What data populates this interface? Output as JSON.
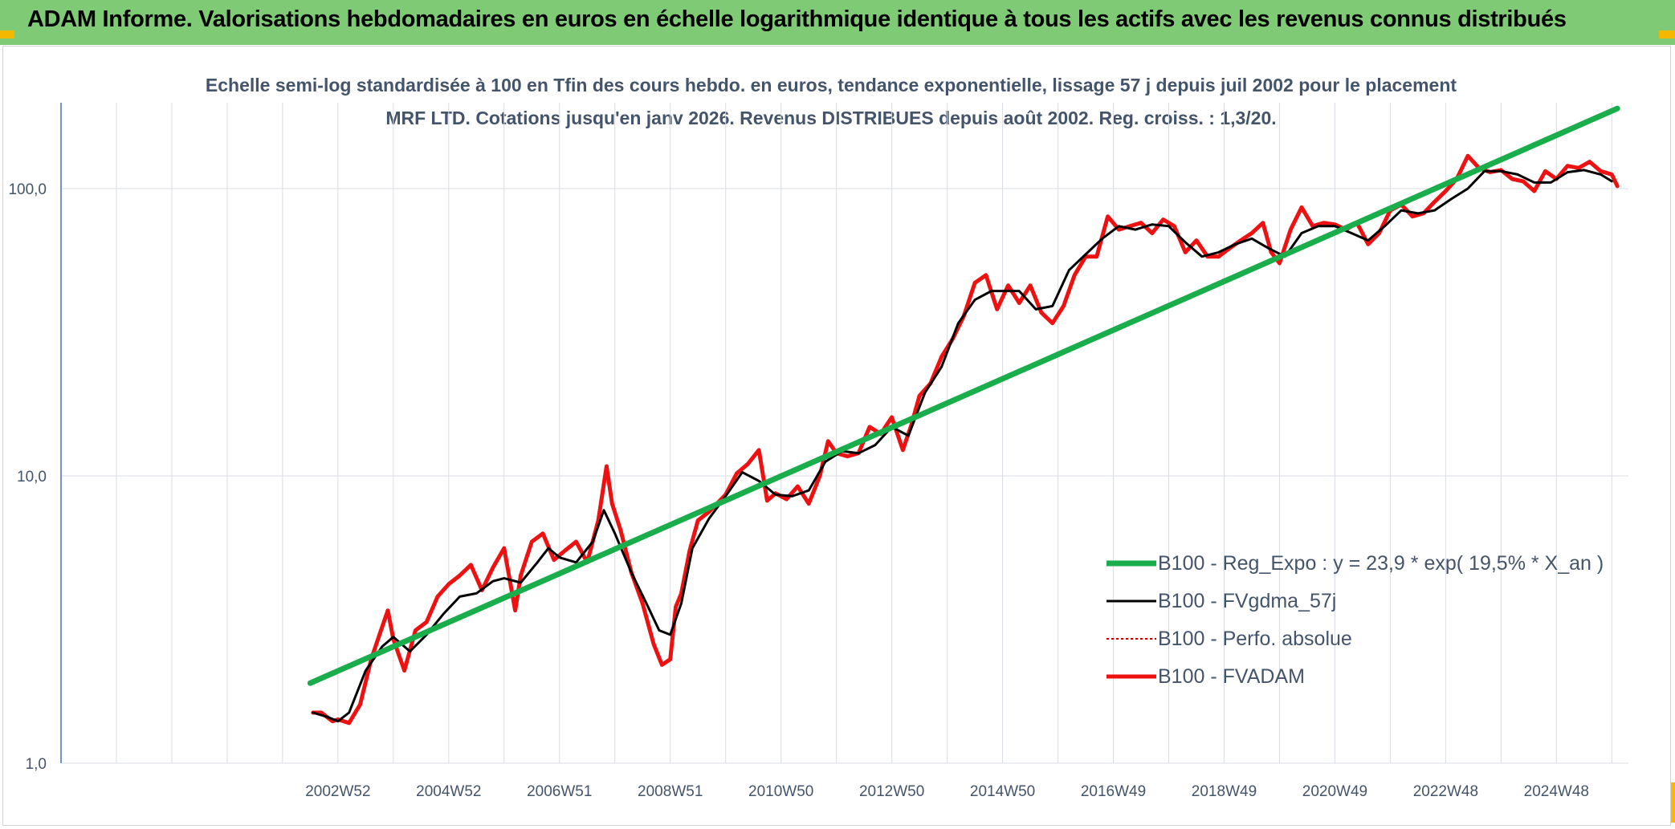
{
  "header": {
    "title": "ADAM Informe. Valorisations hebdomadaires en euros en échelle logarithmique identique à tous les actifs avec les revenus connus distribués"
  },
  "colors": {
    "banner": "#7fca75",
    "corner": "#f5b800",
    "regression": "#1aad4b",
    "smoothed": "#000000",
    "perfo": "#c00000",
    "fvadam": "#ee1111",
    "grid": "#d9dde3",
    "axis": "#4a72b0",
    "text": "#44546a"
  },
  "chart_data": {
    "type": "line",
    "title": "Echelle semi-log standardisée à 100 en Tfin des cours hebdo. en euros, tendance exponentielle, lissage 57 j depuis juil 2002 pour le placement MRF LTD. Cotations jusqu'en janv 2026. Revenus DISTRIBUES depuis août 2002. Reg. croiss. : 1,3/20.",
    "y_scale": "log",
    "ylim": [
      1,
      200
    ],
    "y_ticks": [
      1,
      10,
      100
    ],
    "y_tick_labels": [
      "1,0",
      "10,0",
      "100,0"
    ],
    "x_ticks": [
      "2002W52",
      "2004W52",
      "2006W51",
      "2008W51",
      "2010W50",
      "2012W50",
      "2014W50",
      "2016W49",
      "2018W49",
      "2020W49",
      "2022W48",
      "2024W48"
    ],
    "x_tick_years": [
      2003.0,
      2005.0,
      2007.0,
      2009.0,
      2011.0,
      2013.0,
      2015.0,
      2017.0,
      2019.0,
      2021.0,
      2023.0,
      2025.0
    ],
    "xlim": [
      1998.0,
      2026.3
    ],
    "x_gridlines": [
      1998,
      1999,
      2000,
      2001,
      2002,
      2003,
      2004,
      2005,
      2006,
      2007,
      2008,
      2009,
      2010,
      2011,
      2012,
      2013,
      2014,
      2015,
      2016,
      2017,
      2018,
      2019,
      2020,
      2021,
      2022,
      2023,
      2024,
      2025,
      2026
    ],
    "grid": true,
    "legend_position": "bottom-right",
    "series": [
      {
        "name": "B100 - Reg_Expo : y = 23,9 * exp( 19,5% *  X_an )",
        "style": "regression",
        "x": [
          2002.5,
          2026.1
        ],
        "values": [
          1.9,
          190
        ]
      },
      {
        "name": "B100 - FVgdma_57j",
        "style": "smoothed",
        "x": [
          2002.55,
          2002.8,
          2003.0,
          2003.2,
          2003.5,
          2003.8,
          2004.0,
          2004.3,
          2004.6,
          2004.9,
          2005.2,
          2005.5,
          2005.8,
          2006.0,
          2006.3,
          2006.6,
          2006.8,
          2007.0,
          2007.3,
          2007.6,
          2007.8,
          2008.0,
          2008.3,
          2008.6,
          2008.8,
          2009.0,
          2009.2,
          2009.4,
          2009.7,
          2010.0,
          2010.3,
          2010.6,
          2010.9,
          2011.2,
          2011.5,
          2011.8,
          2012.1,
          2012.4,
          2012.7,
          2013.0,
          2013.3,
          2013.6,
          2013.9,
          2014.2,
          2014.5,
          2014.8,
          2015.0,
          2015.3,
          2015.6,
          2015.9,
          2016.2,
          2016.5,
          2016.8,
          2017.1,
          2017.4,
          2017.7,
          2018.0,
          2018.3,
          2018.6,
          2018.9,
          2019.2,
          2019.5,
          2019.8,
          2020.1,
          2020.4,
          2020.7,
          2021.0,
          2021.3,
          2021.6,
          2021.9,
          2022.2,
          2022.5,
          2022.8,
          2023.1,
          2023.4,
          2023.7,
          2024.0,
          2024.3,
          2024.6,
          2024.9,
          2025.2,
          2025.5,
          2025.8,
          2026.0
        ],
        "values": [
          1.5,
          1.45,
          1.4,
          1.5,
          2.1,
          2.55,
          2.75,
          2.45,
          2.8,
          3.3,
          3.8,
          3.9,
          4.3,
          4.4,
          4.25,
          5.0,
          5.6,
          5.2,
          5.0,
          5.9,
          7.6,
          6.3,
          4.6,
          3.5,
          2.9,
          2.8,
          3.6,
          5.6,
          7.1,
          8.5,
          10.3,
          9.6,
          8.6,
          8.5,
          8.9,
          11.2,
          12.2,
          12.0,
          12.8,
          14.8,
          13.8,
          19.5,
          24.0,
          34.0,
          41.0,
          44.0,
          44.0,
          44.0,
          38.0,
          39.0,
          52.0,
          59.0,
          67.0,
          74.0,
          72.0,
          75.0,
          74.0,
          65.0,
          58.0,
          60.0,
          64.0,
          67.0,
          62.0,
          58.0,
          70.0,
          74.0,
          74.0,
          70.0,
          66.0,
          74.0,
          84.0,
          82.0,
          84.0,
          92.0,
          100.0,
          115.0,
          115.0,
          112.0,
          105.0,
          105.0,
          114.0,
          116.0,
          112.0,
          106.0
        ]
      },
      {
        "name": "B100 - Perfo. absolue",
        "style": "perfo",
        "x": [],
        "values": []
      },
      {
        "name": "B100 - FVADAM",
        "style": "fvadam",
        "x": [
          2002.55,
          2002.7,
          2002.9,
          2003.0,
          2003.2,
          2003.4,
          2003.6,
          2003.75,
          2003.9,
          2004.0,
          2004.2,
          2004.4,
          2004.6,
          2004.8,
          2005.0,
          2005.2,
          2005.4,
          2005.6,
          2005.8,
          2006.0,
          2006.2,
          2006.3,
          2006.5,
          2006.7,
          2006.9,
          2007.1,
          2007.3,
          2007.5,
          2007.7,
          2007.85,
          2007.95,
          2008.1,
          2008.3,
          2008.5,
          2008.7,
          2008.85,
          2009.0,
          2009.1,
          2009.2,
          2009.35,
          2009.5,
          2009.7,
          2010.0,
          2010.2,
          2010.4,
          2010.6,
          2010.75,
          2010.9,
          2011.1,
          2011.3,
          2011.5,
          2011.7,
          2011.85,
          2012.0,
          2012.2,
          2012.4,
          2012.6,
          2012.8,
          2013.0,
          2013.2,
          2013.35,
          2013.5,
          2013.7,
          2013.9,
          2014.1,
          2014.3,
          2014.5,
          2014.7,
          2014.9,
          2015.1,
          2015.3,
          2015.5,
          2015.7,
          2015.9,
          2016.1,
          2016.3,
          2016.5,
          2016.7,
          2016.9,
          2017.1,
          2017.3,
          2017.5,
          2017.7,
          2017.9,
          2018.1,
          2018.3,
          2018.5,
          2018.7,
          2018.9,
          2019.1,
          2019.3,
          2019.5,
          2019.7,
          2019.85,
          2020.0,
          2020.2,
          2020.4,
          2020.6,
          2020.8,
          2021.0,
          2021.2,
          2021.4,
          2021.6,
          2021.8,
          2022.0,
          2022.2,
          2022.4,
          2022.6,
          2022.8,
          2023.0,
          2023.2,
          2023.4,
          2023.6,
          2023.8,
          2024.0,
          2024.2,
          2024.4,
          2024.6,
          2024.8,
          2025.0,
          2025.2,
          2025.4,
          2025.6,
          2025.8,
          2026.0,
          2026.1
        ],
        "values": [
          1.5,
          1.5,
          1.4,
          1.42,
          1.38,
          1.6,
          2.3,
          2.8,
          3.4,
          2.7,
          2.1,
          2.9,
          3.1,
          3.8,
          4.2,
          4.5,
          4.9,
          4.0,
          4.8,
          5.6,
          3.4,
          4.5,
          5.9,
          6.3,
          5.1,
          5.5,
          5.9,
          5.0,
          7.0,
          10.8,
          8.0,
          6.5,
          4.6,
          3.6,
          2.6,
          2.2,
          2.3,
          3.5,
          3.9,
          5.5,
          7.0,
          7.5,
          8.6,
          10.2,
          11.0,
          12.3,
          8.2,
          8.7,
          8.3,
          9.2,
          8.0,
          10.0,
          13.2,
          12.0,
          11.7,
          12.0,
          14.8,
          14.0,
          16.0,
          12.3,
          15.0,
          19.0,
          21.0,
          26.0,
          30.0,
          36.0,
          47.0,
          50.0,
          38.0,
          46.0,
          40.0,
          46.0,
          37.0,
          34.0,
          39.0,
          50.0,
          58.0,
          58.0,
          80.0,
          72.0,
          74.0,
          76.0,
          70.0,
          78.0,
          74.0,
          60.0,
          66.0,
          58.0,
          58.0,
          62.0,
          66.0,
          70.0,
          76.0,
          60.0,
          55.0,
          72.0,
          86.0,
          74.0,
          76.0,
          75.0,
          72.0,
          76.0,
          64.0,
          70.0,
          84.0,
          88.0,
          80.0,
          82.0,
          90.0,
          98.0,
          108.0,
          130.0,
          118.0,
          114.0,
          116.0,
          108.0,
          106.0,
          98.0,
          115.0,
          108.0,
          120.0,
          118.0,
          124.0,
          115.0,
          112.0,
          102.0
        ]
      }
    ]
  }
}
